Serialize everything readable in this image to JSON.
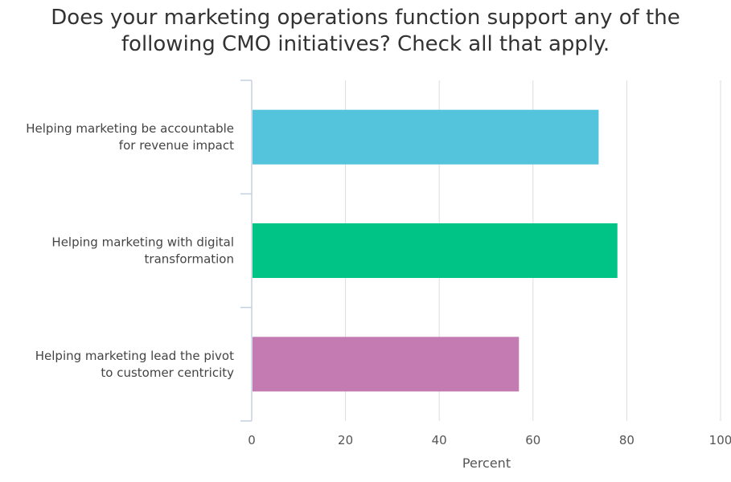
{
  "chart_data": {
    "type": "bar",
    "orientation": "horizontal",
    "title_lines": [
      "Does your marketing operations function support any of the",
      "following CMO initiatives? Check all that apply."
    ],
    "categories": [
      [
        "Helping marketing be accountable",
        "for revenue impact"
      ],
      [
        "Helping marketing with digital",
        "transformation"
      ],
      [
        "Helping marketing lead the pivot",
        "to customer centricity"
      ]
    ],
    "values": [
      74,
      78,
      57
    ],
    "colors": [
      "#54c3dc",
      "#00c486",
      "#c47bb2"
    ],
    "xlabel": "Percent",
    "ylabel": "",
    "xlim": [
      0,
      100
    ],
    "xticks": [
      "0",
      "20",
      "40",
      "60",
      "80",
      "100"
    ],
    "grid": true,
    "legend": "none"
  }
}
